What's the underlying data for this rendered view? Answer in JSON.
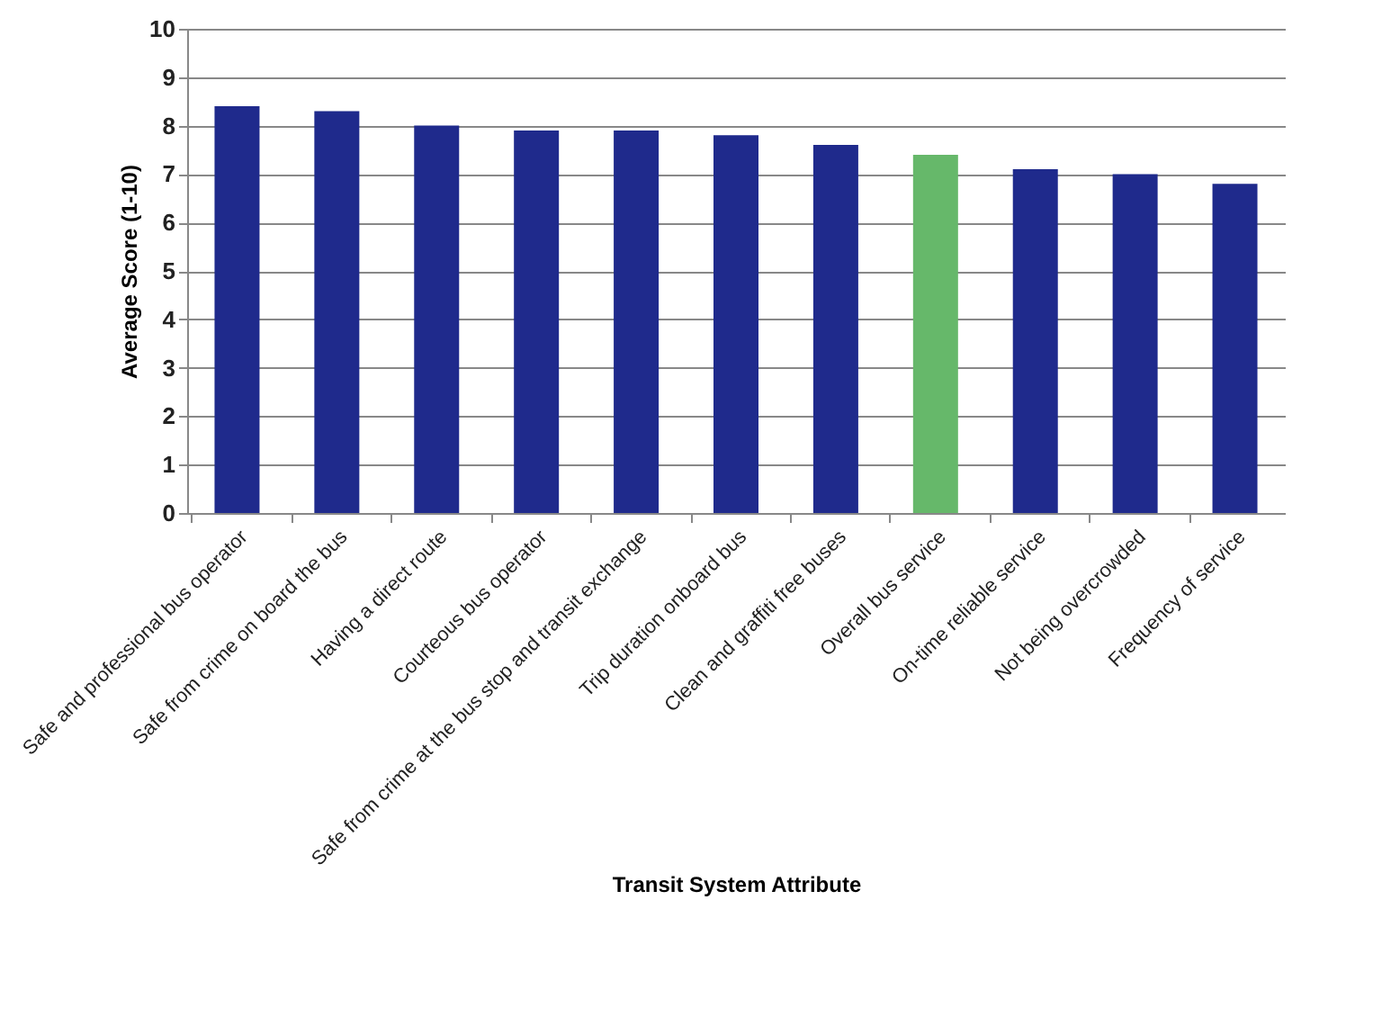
{
  "chart_data": {
    "type": "bar",
    "categories": [
      "Safe and professional bus operator",
      "Safe from crime on board the bus",
      "Having a direct route",
      "Courteous bus operator",
      "Safe from crime at the bus stop and transit exchange",
      "Trip duration onboard bus",
      "Clean and graffiti free buses",
      "Overall bus service",
      "On-time reliable service",
      "Not being overcrowded",
      "Frequency of service"
    ],
    "values": [
      8.4,
      8.3,
      8.0,
      7.9,
      7.9,
      7.8,
      7.6,
      7.4,
      7.1,
      7.0,
      6.8
    ],
    "colors": [
      "#1f2a8c",
      "#1f2a8c",
      "#1f2a8c",
      "#1f2a8c",
      "#1f2a8c",
      "#1f2a8c",
      "#1f2a8c",
      "#66b86a",
      "#1f2a8c",
      "#1f2a8c",
      "#1f2a8c"
    ],
    "xlabel": "Transit System Attribute",
    "ylabel": "Average Score (1-10)",
    "ylim": [
      0,
      10
    ],
    "yticks": [
      0,
      1,
      2,
      3,
      4,
      5,
      6,
      7,
      8,
      9,
      10
    ],
    "grid": "y"
  }
}
